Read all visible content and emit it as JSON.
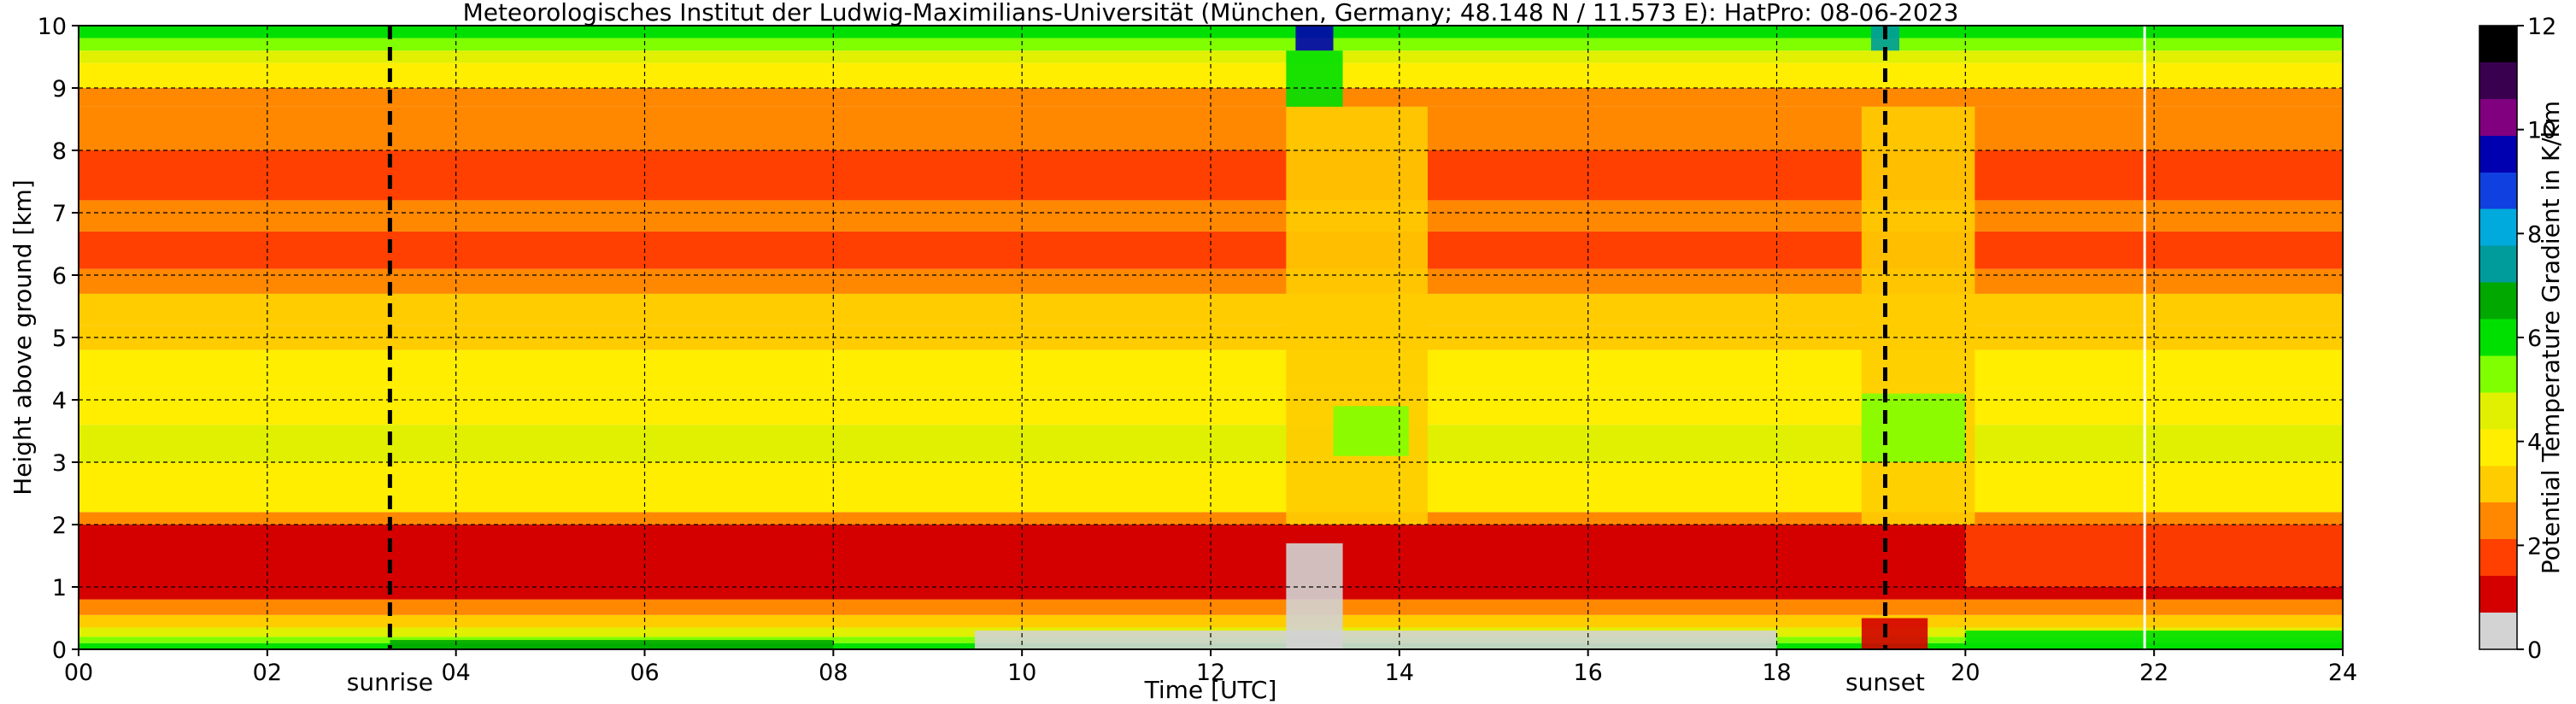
{
  "chart_data": {
    "type": "heatmap",
    "title": "Meteorologisches Institut der Ludwig-Maximilians-Universität (München, Germany; 48.148 N / 11.573 E):    HatPro: 08-06-2023",
    "xlabel": "Time [UTC]",
    "ylabel": "Height above ground [km]",
    "xlim": [
      0,
      24
    ],
    "ylim": [
      0,
      10
    ],
    "x_ticks": [
      "00",
      "02",
      "04",
      "06",
      "08",
      "10",
      "12",
      "14",
      "16",
      "18",
      "20",
      "22",
      "24"
    ],
    "y_ticks": [
      "0",
      "1",
      "2",
      "3",
      "4",
      "5",
      "6",
      "7",
      "8",
      "9",
      "10"
    ],
    "grid": true,
    "colorbar": {
      "label": "Potential Temperature Gradient in K/km",
      "range": [
        0,
        12
      ],
      "ticks": [
        "0",
        "2",
        "4",
        "6",
        "8",
        "10",
        "12"
      ],
      "colors": [
        "#d3d3d3",
        "#d40000",
        "#ff4000",
        "#ff8800",
        "#ffcc00",
        "#ffee00",
        "#e0f000",
        "#80ff00",
        "#00e000",
        "#00a800",
        "#009c9c",
        "#00aadd",
        "#1040e0",
        "#0000b0",
        "#800080",
        "#3a0050",
        "#000000"
      ]
    },
    "annotations": [
      {
        "text": "sunrise",
        "x": 3.3
      },
      {
        "text": "sunset",
        "x": 19.15
      }
    ],
    "vertical_lines": [
      {
        "x": 3.3,
        "style": "dashed",
        "color": "#000000"
      },
      {
        "x": 19.15,
        "style": "dashed",
        "color": "#000000"
      },
      {
        "x": 21.9,
        "style": "solid",
        "color": "#ffffff"
      }
    ],
    "background_profile": [
      {
        "h0": 0.0,
        "h1": 0.1,
        "value": 6.3
      },
      {
        "h0": 0.1,
        "h1": 0.2,
        "value": 5.5
      },
      {
        "h0": 0.2,
        "h1": 0.35,
        "value": 4.8
      },
      {
        "h0": 0.35,
        "h1": 0.55,
        "value": 3.0
      },
      {
        "h0": 0.55,
        "h1": 0.8,
        "value": 2.0
      },
      {
        "h0": 0.8,
        "h1": 2.0,
        "value": 1.0
      },
      {
        "h0": 2.0,
        "h1": 2.2,
        "value": 2.5
      },
      {
        "h0": 2.2,
        "h1": 2.5,
        "value": 3.4
      },
      {
        "h0": 2.5,
        "h1": 3.0,
        "value": 4.1
      },
      {
        "h0": 3.0,
        "h1": 3.6,
        "value": 4.4
      },
      {
        "h0": 3.6,
        "h1": 4.2,
        "value": 4.0
      },
      {
        "h0": 4.2,
        "h1": 4.8,
        "value": 3.4
      },
      {
        "h0": 4.8,
        "h1": 5.2,
        "value": 3.0
      },
      {
        "h0": 5.2,
        "h1": 5.7,
        "value": 2.7
      },
      {
        "h0": 5.7,
        "h1": 6.1,
        "value": 2.4
      },
      {
        "h0": 6.1,
        "h1": 6.7,
        "value": 1.8
      },
      {
        "h0": 6.7,
        "h1": 7.2,
        "value": 2.3
      },
      {
        "h0": 7.2,
        "h1": 8.0,
        "value": 1.7
      },
      {
        "h0": 8.0,
        "h1": 8.7,
        "value": 1.9
      },
      {
        "h0": 8.7,
        "h1": 9.0,
        "value": 2.6
      },
      {
        "h0": 9.0,
        "h1": 9.4,
        "value": 3.4
      },
      {
        "h0": 9.4,
        "h1": 9.6,
        "value": 4.2
      },
      {
        "h0": 9.6,
        "h1": 9.8,
        "value": 5.5
      },
      {
        "h0": 9.8,
        "h1": 10.0,
        "value": 6.3
      }
    ],
    "features": [
      {
        "t0": 9.5,
        "t1": 18.0,
        "h0": 0.0,
        "h1": 0.3,
        "value": 0.2
      },
      {
        "t0": 9.5,
        "t1": 18.0,
        "h0": 0.9,
        "h1": 1.2,
        "value": 0.6
      },
      {
        "t0": 12.8,
        "t1": 13.4,
        "h0": 0.0,
        "h1": 1.7,
        "value": 0.3
      },
      {
        "t0": 12.8,
        "t1": 14.3,
        "h0": 2.0,
        "h1": 8.7,
        "value": 3.1
      },
      {
        "t0": 13.3,
        "t1": 14.1,
        "h0": 3.1,
        "h1": 3.9,
        "value": 5.2
      },
      {
        "t0": 12.8,
        "t1": 13.4,
        "h0": 8.7,
        "h1": 9.6,
        "value": 6.3
      },
      {
        "t0": 12.9,
        "t1": 13.3,
        "h0": 9.6,
        "h1": 10.0,
        "value": 9.5
      },
      {
        "t0": 18.9,
        "t1": 19.6,
        "h0": 0.0,
        "h1": 0.5,
        "value": 0.4
      },
      {
        "t0": 18.9,
        "t1": 20.1,
        "h0": 2.0,
        "h1": 8.7,
        "value": 3.1
      },
      {
        "t0": 18.9,
        "t1": 20.0,
        "h0": 3.0,
        "h1": 4.1,
        "value": 5.2
      },
      {
        "t0": 19.0,
        "t1": 19.3,
        "h0": 9.6,
        "h1": 10.0,
        "value": 7.5
      },
      {
        "t0": 20.0,
        "t1": 24.0,
        "h0": 1.0,
        "h1": 2.0,
        "value": 1.6
      },
      {
        "t0": 20.0,
        "t1": 24.0,
        "h0": 0.0,
        "h1": 0.3,
        "value": 5.8
      },
      {
        "t0": 3.3,
        "t1": 8.0,
        "h0": 0.0,
        "h1": 0.15,
        "value": 6.8
      }
    ]
  }
}
